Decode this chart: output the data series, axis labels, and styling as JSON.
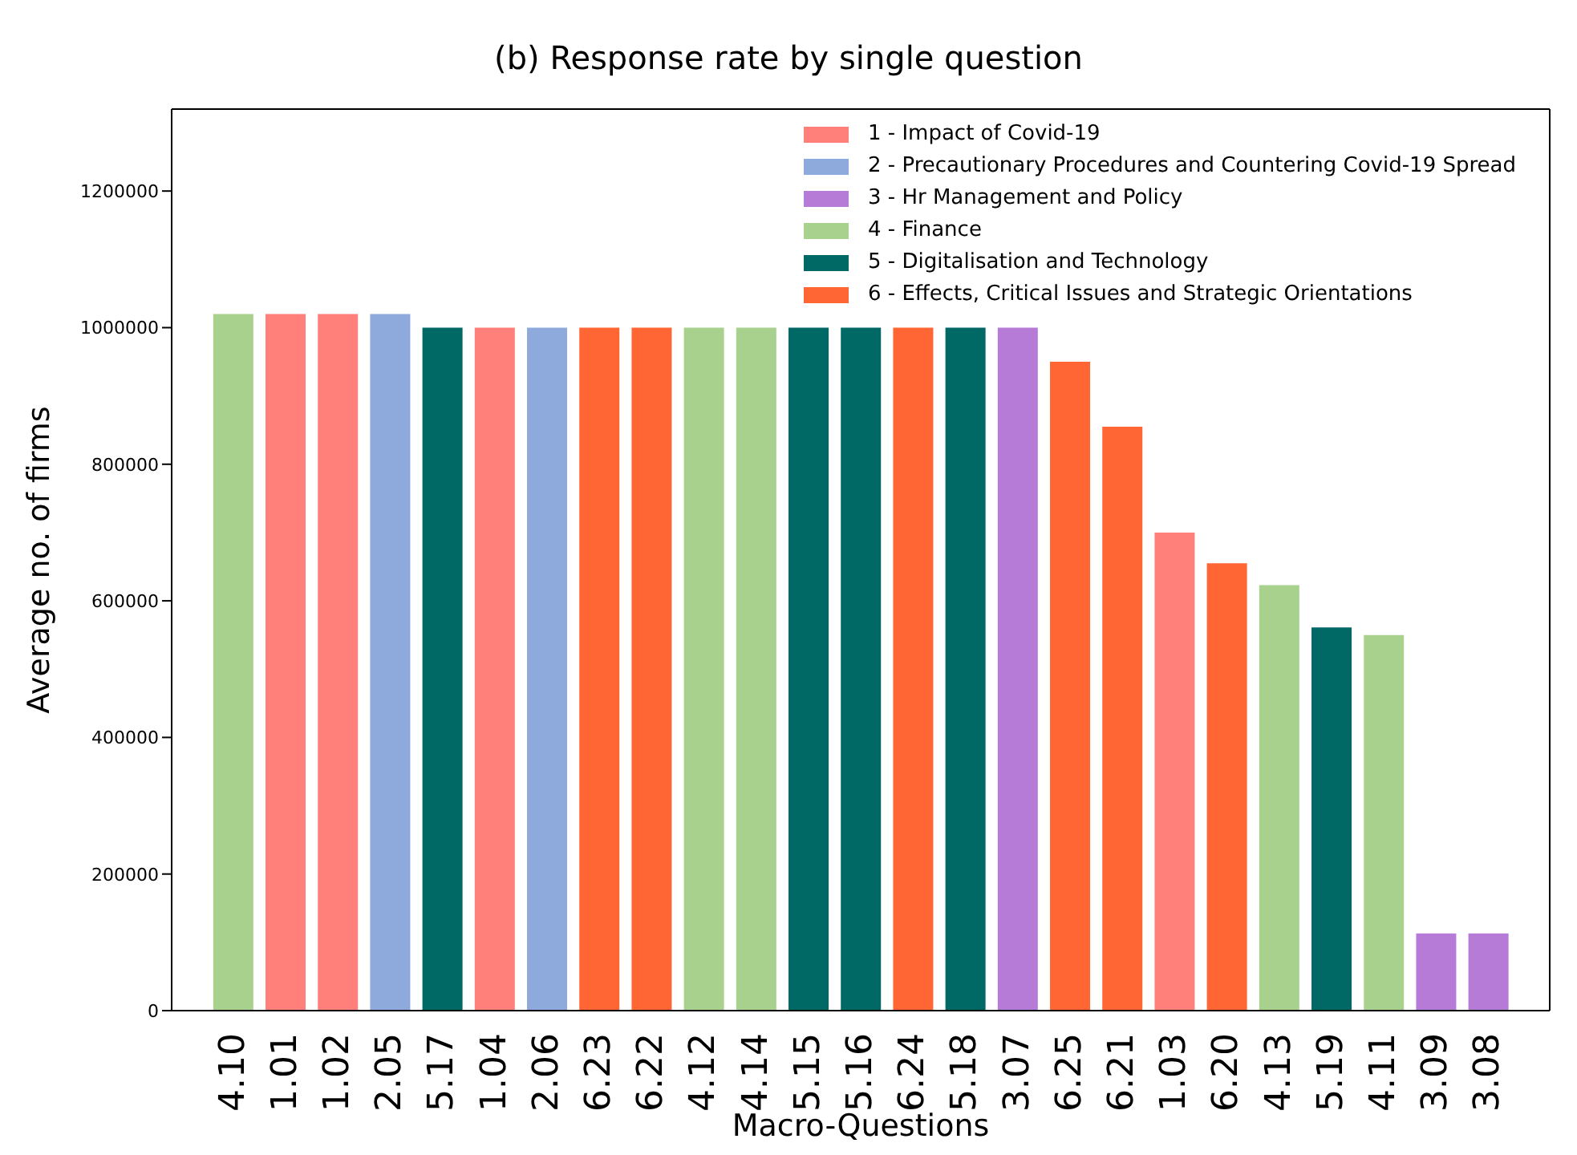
{
  "chart_data": {
    "type": "bar",
    "title": "(b) Response rate by single question",
    "xlabel": "Macro-Questions",
    "ylabel": "Average no. of firms",
    "categories": [
      "4.10",
      "1.01",
      "1.02",
      "2.05",
      "5.17",
      "1.04",
      "2.06",
      "6.23",
      "6.22",
      "4.12",
      "4.14",
      "5.15",
      "5.16",
      "6.24",
      "5.18",
      "3.07",
      "6.25",
      "6.21",
      "1.03",
      "6.20",
      "4.13",
      "5.19",
      "4.11",
      "3.09",
      "3.08"
    ],
    "stacked": true,
    "legend": "top right",
    "ylim": [
      0,
      1320000
    ],
    "yticks": [
      0,
      200000,
      400000,
      600000,
      800000,
      1000000,
      1200000
    ],
    "series": [
      {
        "name": "1 - Impact of Covid-19",
        "color": "#ff7f7a",
        "values": [
          null,
          1020000,
          1020000,
          null,
          null,
          1000000,
          null,
          null,
          null,
          null,
          null,
          null,
          null,
          null,
          null,
          null,
          null,
          null,
          700000,
          null,
          null,
          null,
          null,
          null,
          null
        ]
      },
      {
        "name": "2 - Precautionary Procedures and Countering Covid-19 Spread",
        "color": "#8eaadc",
        "values": [
          null,
          null,
          null,
          1020000,
          null,
          null,
          1000000,
          null,
          null,
          null,
          null,
          null,
          null,
          null,
          null,
          null,
          null,
          null,
          null,
          null,
          null,
          null,
          null,
          null,
          null
        ]
      },
      {
        "name": "3 - Hr Management and Policy",
        "color": "#b57bd6",
        "values": [
          null,
          null,
          null,
          null,
          null,
          null,
          null,
          null,
          null,
          null,
          null,
          null,
          null,
          null,
          null,
          1000000,
          null,
          null,
          null,
          null,
          null,
          null,
          null,
          113000,
          113000
        ]
      },
      {
        "name": "4 - Finance",
        "color": "#a9d18e",
        "values": [
          1020000,
          null,
          null,
          null,
          null,
          null,
          null,
          null,
          null,
          1000000,
          1000000,
          null,
          null,
          null,
          null,
          null,
          null,
          null,
          null,
          null,
          623000,
          null,
          550000,
          null,
          null
        ]
      },
      {
        "name": "5 - Digitalisation and Technology",
        "color": "#006966",
        "values": [
          null,
          null,
          null,
          null,
          1000000,
          null,
          null,
          null,
          null,
          null,
          null,
          1000000,
          1000000,
          null,
          1000000,
          null,
          null,
          null,
          null,
          null,
          null,
          561000,
          null,
          null,
          null
        ]
      },
      {
        "name": "6 - Effects, Critical Issues and Strategic Orientations",
        "color": "#ff6633",
        "values": [
          null,
          null,
          null,
          null,
          null,
          null,
          null,
          1000000,
          1000000,
          null,
          null,
          null,
          null,
          1000000,
          null,
          null,
          950000,
          855000,
          null,
          655000,
          null,
          null,
          null,
          null,
          null
        ]
      }
    ]
  }
}
